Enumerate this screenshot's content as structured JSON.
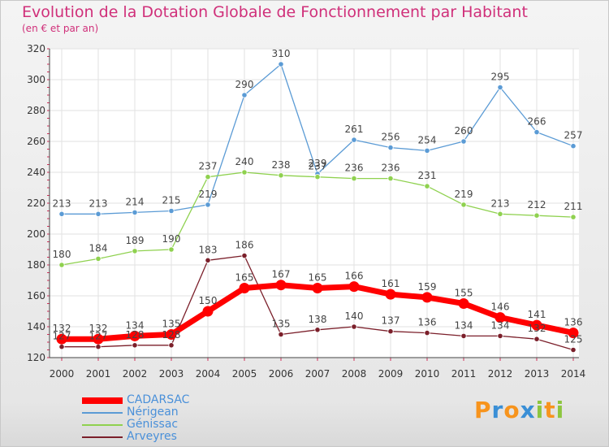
{
  "title": "Evolution de la Dotation Globale de Fonctionnement par Habitant",
  "subtitle": "(en € et par an)",
  "chart_data": {
    "type": "line",
    "title": "Evolution de la Dotation Globale de Fonctionnement par Habitant",
    "subtitle": "(en € et par an)",
    "xlabel": "",
    "ylabel": "",
    "ylim": [
      120,
      320
    ],
    "yticks": [
      120,
      140,
      160,
      180,
      200,
      220,
      240,
      260,
      280,
      300,
      320
    ],
    "grid": true,
    "legend_position": "bottom-left",
    "categories": [
      "2000",
      "2001",
      "2002",
      "2003",
      "2004",
      "2005",
      "2006",
      "2007",
      "2008",
      "2009",
      "2010",
      "2011",
      "2012",
      "2013",
      "2014"
    ],
    "series": [
      {
        "name": "CADARSAC",
        "color": "#ff0000",
        "values": [
          132,
          132,
          134,
          135,
          150,
          165,
          167,
          165,
          166,
          161,
          159,
          155,
          146,
          141,
          136
        ]
      },
      {
        "name": "Nérigean",
        "color": "#5b9bd5",
        "values": [
          213,
          213,
          214,
          215,
          219,
          290,
          310,
          239,
          261,
          256,
          254,
          260,
          295,
          266,
          257
        ]
      },
      {
        "name": "Génissac",
        "color": "#8fd14f",
        "values": [
          180,
          184,
          189,
          190,
          237,
          240,
          238,
          237,
          236,
          236,
          231,
          219,
          213,
          212,
          211
        ]
      },
      {
        "name": "Arveyres",
        "color": "#7b1f2a",
        "values": [
          127,
          127,
          128,
          128,
          183,
          186,
          135,
          138,
          140,
          137,
          136,
          134,
          134,
          132,
          125
        ]
      }
    ]
  },
  "logo": {
    "letters": [
      "P",
      "r",
      "o",
      "x",
      "i",
      "t",
      "i"
    ],
    "colors": [
      "#f7941d",
      "#3a8fd6",
      "#f7941d",
      "#3a8fd6",
      "#8dc63f",
      "#f7941d",
      "#8dc63f"
    ]
  }
}
